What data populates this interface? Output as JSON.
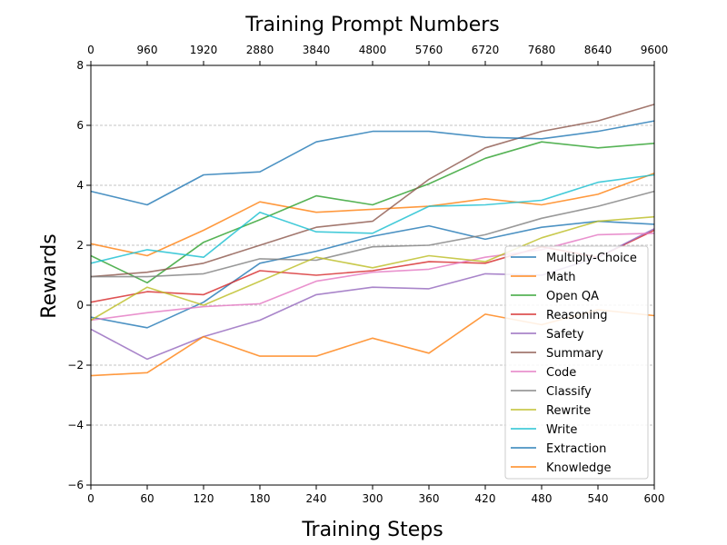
{
  "chart_data": {
    "type": "line",
    "title": "Training Prompt Numbers",
    "xlabel": "Training Steps",
    "ylabel": "Rewards",
    "xlim": [
      0,
      600
    ],
    "ylim": [
      -6,
      8
    ],
    "xticks": [
      "0",
      "60",
      "120",
      "180",
      "240",
      "300",
      "360",
      "420",
      "480",
      "540",
      "600"
    ],
    "yticks": [
      "−6",
      "−4",
      "−2",
      "0",
      "2",
      "4",
      "6",
      "8"
    ],
    "top_ticks": [
      "0",
      "960",
      "1920",
      "2880",
      "3840",
      "4800",
      "5760",
      "6720",
      "7680",
      "8640",
      "9600"
    ],
    "grid": "horizontal dashed",
    "legend_position": "lower-right",
    "x": [
      0,
      60,
      120,
      180,
      240,
      300,
      360,
      420,
      480,
      540,
      600
    ],
    "series": [
      {
        "name": "Multiply-Choice",
        "color": "#1f77b4",
        "values": [
          -0.4,
          -0.75,
          0.1,
          1.4,
          1.8,
          2.3,
          2.65,
          2.2,
          2.6,
          2.8,
          2.7
        ]
      },
      {
        "name": "Math",
        "color": "#ff7f0e",
        "values": [
          2.05,
          1.65,
          2.5,
          3.45,
          3.1,
          3.2,
          3.3,
          3.55,
          3.35,
          3.7,
          4.4
        ]
      },
      {
        "name": "Open QA",
        "color": "#2ca02c",
        "values": [
          1.65,
          0.75,
          2.1,
          2.85,
          3.65,
          3.35,
          4.05,
          4.9,
          5.45,
          5.25,
          5.4
        ]
      },
      {
        "name": "Reasoning",
        "color": "#d62728",
        "values": [
          0.1,
          0.45,
          0.35,
          1.15,
          1.0,
          1.15,
          1.45,
          1.4,
          1.95,
          1.6,
          2.5
        ]
      },
      {
        "name": "Safety",
        "color": "#9467bd",
        "values": [
          -0.8,
          -1.8,
          -1.05,
          -0.5,
          0.35,
          0.6,
          0.55,
          1.05,
          1.0,
          1.6,
          2.55
        ]
      },
      {
        "name": "Summary",
        "color": "#8c564b",
        "values": [
          0.95,
          1.1,
          1.4,
          2.0,
          2.6,
          2.8,
          4.2,
          5.25,
          5.8,
          6.15,
          6.7
        ]
      },
      {
        "name": "Code",
        "color": "#e377c2",
        "values": [
          -0.5,
          -0.25,
          -0.05,
          0.05,
          0.8,
          1.1,
          1.2,
          1.6,
          1.85,
          2.35,
          2.4
        ]
      },
      {
        "name": "Classify",
        "color": "#7f7f7f",
        "values": [
          0.95,
          0.95,
          1.05,
          1.55,
          1.5,
          1.95,
          2.0,
          2.35,
          2.9,
          3.3,
          3.8
        ]
      },
      {
        "name": "Rewrite",
        "color": "#bcbd22",
        "values": [
          -0.5,
          0.6,
          0.0,
          0.8,
          1.6,
          1.25,
          1.65,
          1.45,
          2.25,
          2.8,
          2.95
        ]
      },
      {
        "name": "Write",
        "color": "#17becf",
        "values": [
          1.4,
          1.85,
          1.6,
          3.1,
          2.45,
          2.4,
          3.3,
          3.35,
          3.5,
          4.1,
          4.35
        ]
      },
      {
        "name": "Extraction",
        "color": "#1f77b4",
        "values": [
          3.8,
          3.35,
          4.35,
          4.45,
          5.45,
          5.8,
          5.8,
          5.6,
          5.55,
          5.8,
          6.15
        ]
      },
      {
        "name": "Knowledge",
        "color": "#ff7f0e",
        "values": [
          -2.35,
          -2.25,
          -1.05,
          -1.7,
          -1.7,
          -1.1,
          -1.6,
          -0.3,
          -0.65,
          -0.15,
          -0.35
        ]
      }
    ]
  }
}
